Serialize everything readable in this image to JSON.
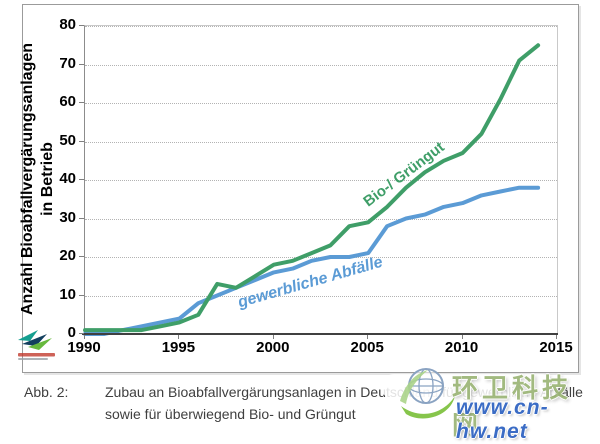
{
  "chart_data": {
    "type": "line",
    "title": "",
    "ylabel_line1": "Anzahl Bioabfallvergärungsanlagen",
    "ylabel_line2": "in Betrieb",
    "xlabel": "",
    "xlim": [
      1990,
      2015
    ],
    "ylim": [
      0,
      80
    ],
    "xticks": [
      1990,
      1995,
      2000,
      2005,
      2010,
      2015
    ],
    "yticks": [
      0,
      10,
      20,
      30,
      40,
      50,
      60,
      70,
      80
    ],
    "grid": "horizontal-dotted",
    "legend_position": "labels-on-lines",
    "x": [
      1990,
      1991,
      1992,
      1993,
      1994,
      1995,
      1996,
      1997,
      1998,
      1999,
      2000,
      2001,
      2002,
      2003,
      2004,
      2005,
      2006,
      2007,
      2008,
      2009,
      2010,
      2011,
      2012,
      2013,
      2014
    ],
    "series": [
      {
        "name": "gewerbliche Abfälle",
        "color": "#5b9bd5",
        "values": [
          0,
          0,
          1,
          2,
          3,
          4,
          8,
          10,
          12,
          14,
          16,
          17,
          19,
          20,
          20,
          21,
          28,
          30,
          31,
          33,
          34,
          36,
          37,
          38,
          38
        ]
      },
      {
        "name": "Bio-/ Grüngut",
        "color": "#3f9e68",
        "values": [
          1,
          1,
          1,
          1,
          2,
          3,
          5,
          13,
          12,
          15,
          18,
          19,
          21,
          23,
          28,
          29,
          33,
          38,
          42,
          45,
          47,
          52,
          61,
          71,
          75
        ]
      }
    ]
  },
  "caption": {
    "label": "Abb. 2:",
    "line1": "Zubau an Bioabfallvergärungsanlagen in Deutschland für gewerbliche Abfälle",
    "line2": "sowie für überwiegend Bio- und Grüngut"
  },
  "watermark": {
    "site_name": "环卫科技网",
    "url": "www.cn-hw.net"
  }
}
